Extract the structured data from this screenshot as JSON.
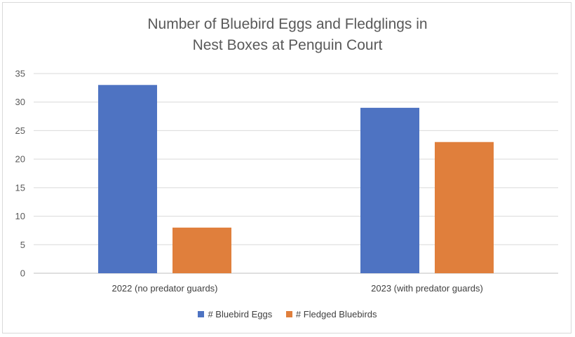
{
  "chart_data": {
    "type": "bar",
    "title_lines": [
      "Number of Bluebird Eggs and Fledglings in",
      "Nest Boxes at Penguin Court"
    ],
    "categories": [
      "2022 (no predator guards)",
      "2023 (with predator guards)"
    ],
    "series": [
      {
        "name": "# Bluebird Eggs",
        "values": [
          33,
          29
        ],
        "color": "#4e73c2"
      },
      {
        "name": "# Fledged Bluebirds",
        "values": [
          8,
          23
        ],
        "color": "#e07f3c"
      }
    ],
    "ylim": [
      0,
      35
    ],
    "yticks": [
      0,
      5,
      10,
      15,
      20,
      25,
      30,
      35
    ],
    "grid": true,
    "legend_position": "bottom"
  }
}
